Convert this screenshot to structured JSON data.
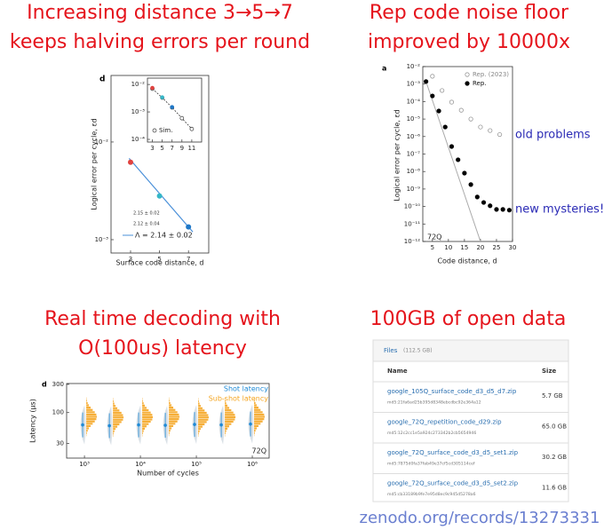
{
  "panels": [
    {
      "title_lines": [
        "Increasing distance 3→5→7",
        "keeps halving errors per round"
      ],
      "chart": {
        "type": "scatter",
        "panel_label": "d",
        "xlabel": "Surface code distance, d",
        "ylabel": "Logical error per cycle, εd",
        "log_y": true,
        "xlim": [
          1.65,
          8.4
        ],
        "xticks": [
          3,
          5,
          7
        ],
        "ylim": [
          0.00073,
          0.048
        ],
        "yticks": [
          {
            "value": 0.01,
            "label": "10⁻²"
          },
          {
            "value": 0.001,
            "label": "10⁻³"
          }
        ],
        "x": [
          3,
          5,
          7
        ],
        "values": [
          0.0062,
          0.0028,
          0.00135
        ],
        "colors": [
          "#e0423f",
          "#35b7c8",
          "#1f78c8"
        ],
        "fit": {
          "x": [
            2.9,
            7.3
          ],
          "values": [
            0.0068,
            0.0012
          ],
          "color": "#4a90d9"
        },
        "fit_labels": [
          "2.15 ± 0.02",
          "2.12 ± 0.04"
        ],
        "lambda_label": "Λ = 2.14 ± 0.02",
        "inset": {
          "xlim": [
            2,
            13
          ],
          "xticks": [
            3,
            5,
            7,
            9,
            11
          ],
          "ylim": [
            8e-05,
            0.017
          ],
          "yticks": [
            {
              "value": 0.01,
              "label": "10⁻²"
            },
            {
              "value": 0.001,
              "label": "10⁻³"
            },
            {
              "value": 0.0001,
              "label": "10⁻⁴"
            }
          ],
          "sim_label": "Sim.",
          "sim": {
            "x": [
              3,
              5,
              7,
              9,
              11
            ],
            "values": [
              0.007,
              0.0033,
              0.00145,
              0.00059,
              0.00024
            ]
          },
          "exp": {
            "x": [
              3,
              5,
              7
            ],
            "values": [
              0.0075,
              0.0034,
              0.0015
            ]
          }
        }
      }
    },
    {
      "title_lines": [
        "Rep code noise floor",
        "improved by 10000x"
      ],
      "chart": {
        "type": "scatter",
        "panel_label": "a",
        "xlabel": "Code distance, d",
        "ylabel": "Logical error per cycle, εd",
        "log_y": true,
        "xlim": [
          2,
          30
        ],
        "xticks": [
          5,
          10,
          15,
          20,
          25,
          30
        ],
        "ylim": [
          1e-12,
          0.01
        ],
        "yticks": [
          {
            "value": 0.01,
            "label": "10⁻²"
          },
          {
            "value": 0.001,
            "label": "10⁻³"
          },
          {
            "value": 0.0001,
            "label": "10⁻⁴"
          },
          {
            "value": 1e-05,
            "label": "10⁻⁵"
          },
          {
            "value": 1e-06,
            "label": "10⁻⁶"
          },
          {
            "value": 1e-07,
            "label": "10⁻⁷"
          },
          {
            "value": 1e-08,
            "label": "10⁻⁸"
          },
          {
            "value": 1e-09,
            "label": "10⁻⁹"
          },
          {
            "value": 1e-10,
            "label": "10⁻¹⁰"
          },
          {
            "value": 1e-11,
            "label": "10⁻¹¹"
          },
          {
            "value": 1e-12,
            "label": "10⁻¹²"
          }
        ],
        "series": [
          {
            "name": "Rep. (2023)",
            "color": "#999999",
            "hollow": true,
            "x": [
              5,
              8,
              11,
              14,
              17,
              20,
              23,
              26
            ],
            "values": [
              0.0028,
              0.00043,
              9.3e-05,
              3.2e-05,
              1e-05,
              3.5e-06,
              2.2e-06,
              1.3e-06
            ]
          },
          {
            "name": "Rep.",
            "color": "#000000",
            "hollow": false,
            "x": [
              3,
              5,
              7,
              9,
              11,
              13,
              15,
              17,
              19,
              21,
              23,
              25,
              27,
              29
            ],
            "values": [
              0.0014,
              0.00021,
              2.9e-05,
              3.5e-06,
              2.7e-07,
              4.7e-08,
              8.1e-09,
              1.8e-09,
              3.5e-10,
              1.7e-10,
              1.1e-10,
              6.8e-11,
              6.8e-11,
              6.2e-11
            ]
          }
        ],
        "fit": {
          "x": [
            3,
            20
          ],
          "values": [
            0.0014,
            1e-12
          ],
          "color": "#aaaaaa"
        },
        "tag": "72Q",
        "annotations": [
          "old problems",
          "new mysteries!"
        ],
        "annotation_color": "#2a2ab5"
      }
    },
    {
      "title_lines": [
        "Real time decoding with",
        "O(100us) latency"
      ],
      "chart": {
        "type": "violin",
        "panel_label": "d",
        "xlabel": "Number of cycles",
        "ylabel": "Latency (μs)",
        "log_x": true,
        "log_y": true,
        "xlim": [
          480,
          2000000
        ],
        "xticks": [
          {
            "value": 1000,
            "label": "10³"
          },
          {
            "value": 10000,
            "label": "10⁴"
          },
          {
            "value": 100000,
            "label": "10⁵"
          },
          {
            "value": 1000000,
            "label": "10⁶"
          }
        ],
        "ylim": [
          17,
          310
        ],
        "yticks": [
          300,
          100,
          30
        ],
        "x": [
          1000,
          3000,
          10000,
          30000,
          100000,
          300000,
          1000000
        ],
        "series": [
          {
            "name": "Shot latency",
            "color": "#1f8ad6",
            "values": [
              62,
              60,
              62,
              61,
              63,
              62,
              64
            ]
          },
          {
            "name": "Sub-shot latency",
            "color": "#f5a623",
            "values": [
              88,
              86,
              87,
              88,
              86,
              87,
              88
            ]
          }
        ],
        "tag": "72Q"
      }
    },
    {
      "title_lines": [
        "100GB of open data"
      ],
      "table": {
        "caption": "Files",
        "caption_size": "(112.5 GB)",
        "header": [
          "Name",
          "Size"
        ],
        "rows": [
          [
            "google_105Q_surface_code_d3_d5_d7.zip",
            "md5:21fa6ad25b395d8348ebcdbc92e364a12",
            "5.7 GB"
          ],
          [
            "google_72Q_repetition_code_d29.zip",
            "md5:12c2cc1e5a924c273342b2cb5654946",
            "65.0 GB"
          ],
          [
            "google_72Q_surface_code_d3_d5_set1.zip",
            "md5:7875d0fa37fab49e37cf5cd305114cef",
            "30.2 GB"
          ],
          [
            "google_72Q_surface_code_d3_d5_set2.zip",
            "md5:cb33189b9fe7e95d8ec9c945d5278a6",
            "11.6 GB"
          ]
        ]
      },
      "link": "zenodo.org/records/13273331"
    }
  ]
}
